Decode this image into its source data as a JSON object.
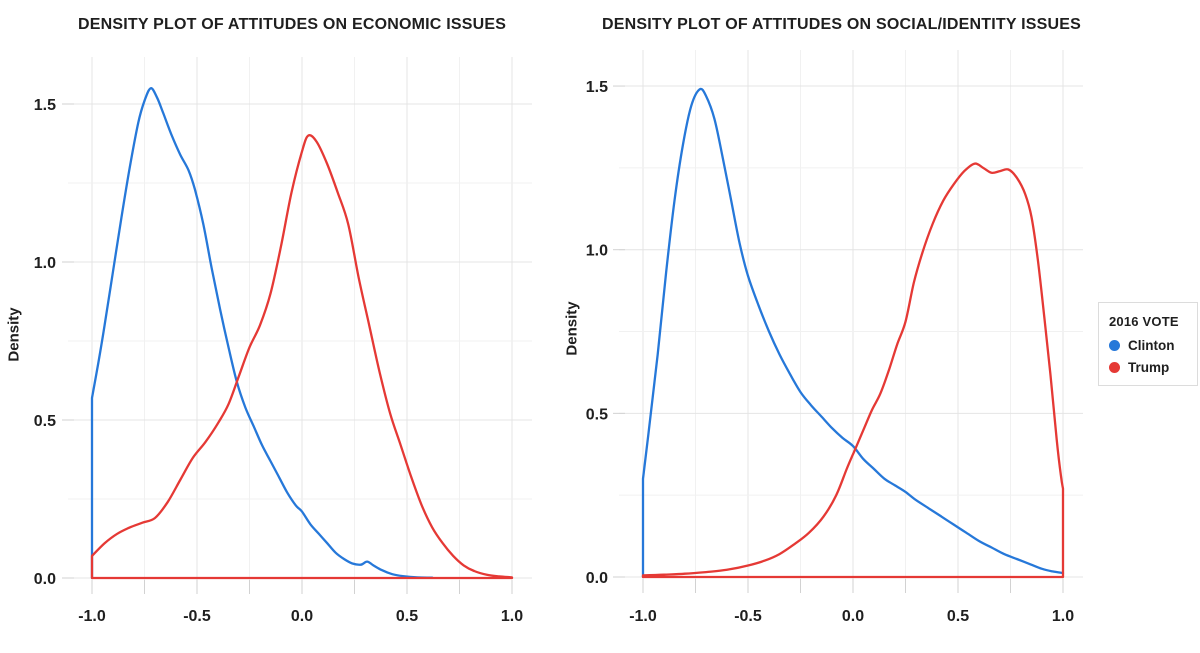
{
  "colors": {
    "clinton": "#2678d9",
    "trump": "#e53935",
    "grid_major": "#e4e4e4",
    "grid_minor": "#f1f1f1",
    "tick": "#d2d2d2",
    "text": "#1f1f1f"
  },
  "legend": {
    "title": "2016 VOTE",
    "entries": [
      {
        "label": "Clinton",
        "color": "#2678d9"
      },
      {
        "label": "Trump",
        "color": "#e53935"
      }
    ]
  },
  "chart_data": [
    {
      "type": "density",
      "title": "DENSITY PLOT OF ATTITUDES ON ECONOMIC ISSUES",
      "xlabel": "",
      "ylabel": "Density",
      "xlim": [
        -1.0,
        1.0
      ],
      "ylim": [
        0.0,
        1.5
      ],
      "x_ticks": [
        -1.0,
        -0.5,
        0.0,
        0.5,
        1.0
      ],
      "x_tick_labels": [
        "-1.0",
        "-0.5",
        "0.0",
        "0.5",
        "1.0"
      ],
      "y_ticks": [
        0.0,
        0.5,
        1.0,
        1.5
      ],
      "y_tick_labels": [
        "0.0",
        "0.5",
        "1.0",
        "1.5"
      ],
      "minor_tick_step": 0.25,
      "grid": true,
      "series": [
        {
          "name": "Clinton",
          "color": "#2678d9",
          "left_edge": true,
          "closed": false,
          "points": [
            [
              -1.0,
              0.57
            ],
            [
              -0.97,
              0.68
            ],
            [
              -0.94,
              0.8
            ],
            [
              -0.9,
              0.97
            ],
            [
              -0.86,
              1.14
            ],
            [
              -0.82,
              1.3
            ],
            [
              -0.78,
              1.44
            ],
            [
              -0.75,
              1.51
            ],
            [
              -0.72,
              1.55
            ],
            [
              -0.69,
              1.52
            ],
            [
              -0.66,
              1.47
            ],
            [
              -0.62,
              1.4
            ],
            [
              -0.58,
              1.34
            ],
            [
              -0.54,
              1.29
            ],
            [
              -0.51,
              1.23
            ],
            [
              -0.47,
              1.12
            ],
            [
              -0.43,
              0.98
            ],
            [
              -0.39,
              0.85
            ],
            [
              -0.35,
              0.73
            ],
            [
              -0.31,
              0.62
            ],
            [
              -0.27,
              0.54
            ],
            [
              -0.23,
              0.48
            ],
            [
              -0.19,
              0.42
            ],
            [
              -0.15,
              0.37
            ],
            [
              -0.11,
              0.32
            ],
            [
              -0.07,
              0.27
            ],
            [
              -0.03,
              0.23
            ],
            [
              0.0,
              0.21
            ],
            [
              0.04,
              0.17
            ],
            [
              0.08,
              0.14
            ],
            [
              0.12,
              0.11
            ],
            [
              0.16,
              0.08
            ],
            [
              0.2,
              0.06
            ],
            [
              0.24,
              0.046
            ],
            [
              0.28,
              0.042
            ],
            [
              0.31,
              0.052
            ],
            [
              0.34,
              0.04
            ],
            [
              0.38,
              0.025
            ],
            [
              0.43,
              0.012
            ],
            [
              0.48,
              0.006
            ],
            [
              0.55,
              0.002
            ],
            [
              0.62,
              0.001
            ]
          ]
        },
        {
          "name": "Trump",
          "color": "#e53935",
          "left_edge": false,
          "closed": true,
          "points": [
            [
              -1.0,
              0.07
            ],
            [
              -0.94,
              0.11
            ],
            [
              -0.88,
              0.14
            ],
            [
              -0.82,
              0.16
            ],
            [
              -0.76,
              0.175
            ],
            [
              -0.7,
              0.19
            ],
            [
              -0.64,
              0.24
            ],
            [
              -0.58,
              0.31
            ],
            [
              -0.52,
              0.38
            ],
            [
              -0.46,
              0.43
            ],
            [
              -0.4,
              0.49
            ],
            [
              -0.35,
              0.55
            ],
            [
              -0.3,
              0.64
            ],
            [
              -0.25,
              0.73
            ],
            [
              -0.2,
              0.8
            ],
            [
              -0.15,
              0.9
            ],
            [
              -0.1,
              1.05
            ],
            [
              -0.05,
              1.22
            ],
            [
              0.0,
              1.35
            ],
            [
              0.03,
              1.4
            ],
            [
              0.07,
              1.38
            ],
            [
              0.12,
              1.31
            ],
            [
              0.17,
              1.22
            ],
            [
              0.22,
              1.12
            ],
            [
              0.27,
              0.95
            ],
            [
              0.32,
              0.8
            ],
            [
              0.37,
              0.65
            ],
            [
              0.42,
              0.52
            ],
            [
              0.47,
              0.42
            ],
            [
              0.52,
              0.32
            ],
            [
              0.57,
              0.23
            ],
            [
              0.62,
              0.16
            ],
            [
              0.67,
              0.11
            ],
            [
              0.72,
              0.07
            ],
            [
              0.77,
              0.04
            ],
            [
              0.82,
              0.022
            ],
            [
              0.88,
              0.01
            ],
            [
              0.94,
              0.005
            ],
            [
              1.0,
              0.002
            ]
          ]
        }
      ]
    },
    {
      "type": "density",
      "title": "DENSITY PLOT OF ATTITUDES ON SOCIAL/IDENTITY ISSUES",
      "xlabel": "",
      "ylabel": "Density",
      "xlim": [
        -1.0,
        1.0
      ],
      "ylim": [
        0.0,
        1.5
      ],
      "x_ticks": [
        -1.0,
        -0.5,
        0.0,
        0.5,
        1.0
      ],
      "x_tick_labels": [
        "-1.0",
        "-0.5",
        "0.0",
        "0.5",
        "1.0"
      ],
      "y_ticks": [
        0.0,
        0.5,
        1.0,
        1.5
      ],
      "y_tick_labels": [
        "0.0",
        "0.5",
        "1.0",
        "1.5"
      ],
      "minor_tick_step": 0.25,
      "grid": true,
      "series": [
        {
          "name": "Clinton",
          "color": "#2678d9",
          "left_edge": true,
          "closed": false,
          "points": [
            [
              -1.0,
              0.3
            ],
            [
              -0.97,
              0.46
            ],
            [
              -0.93,
              0.68
            ],
            [
              -0.89,
              0.93
            ],
            [
              -0.85,
              1.15
            ],
            [
              -0.81,
              1.32
            ],
            [
              -0.77,
              1.44
            ],
            [
              -0.73,
              1.49
            ],
            [
              -0.7,
              1.47
            ],
            [
              -0.66,
              1.4
            ],
            [
              -0.62,
              1.28
            ],
            [
              -0.58,
              1.15
            ],
            [
              -0.54,
              1.02
            ],
            [
              -0.5,
              0.92
            ],
            [
              -0.45,
              0.83
            ],
            [
              -0.4,
              0.75
            ],
            [
              -0.35,
              0.68
            ],
            [
              -0.3,
              0.62
            ],
            [
              -0.25,
              0.565
            ],
            [
              -0.2,
              0.525
            ],
            [
              -0.15,
              0.49
            ],
            [
              -0.1,
              0.455
            ],
            [
              -0.05,
              0.425
            ],
            [
              0.0,
              0.4
            ],
            [
              0.05,
              0.36
            ],
            [
              0.1,
              0.33
            ],
            [
              0.15,
              0.3
            ],
            [
              0.2,
              0.28
            ],
            [
              0.25,
              0.26
            ],
            [
              0.3,
              0.235
            ],
            [
              0.36,
              0.21
            ],
            [
              0.42,
              0.185
            ],
            [
              0.48,
              0.16
            ],
            [
              0.54,
              0.135
            ],
            [
              0.6,
              0.11
            ],
            [
              0.66,
              0.09
            ],
            [
              0.72,
              0.07
            ],
            [
              0.78,
              0.055
            ],
            [
              0.84,
              0.04
            ],
            [
              0.9,
              0.025
            ],
            [
              0.95,
              0.017
            ],
            [
              1.0,
              0.012
            ]
          ]
        },
        {
          "name": "Trump",
          "color": "#e53935",
          "left_edge": false,
          "closed": true,
          "points": [
            [
              -1.0,
              0.005
            ],
            [
              -0.9,
              0.007
            ],
            [
              -0.8,
              0.01
            ],
            [
              -0.7,
              0.015
            ],
            [
              -0.6,
              0.022
            ],
            [
              -0.5,
              0.035
            ],
            [
              -0.42,
              0.05
            ],
            [
              -0.35,
              0.07
            ],
            [
              -0.28,
              0.1
            ],
            [
              -0.21,
              0.135
            ],
            [
              -0.14,
              0.185
            ],
            [
              -0.08,
              0.25
            ],
            [
              -0.03,
              0.33
            ],
            [
              0.01,
              0.39
            ],
            [
              0.05,
              0.45
            ],
            [
              0.09,
              0.51
            ],
            [
              0.13,
              0.56
            ],
            [
              0.17,
              0.63
            ],
            [
              0.21,
              0.71
            ],
            [
              0.25,
              0.78
            ],
            [
              0.29,
              0.9
            ],
            [
              0.33,
              0.99
            ],
            [
              0.38,
              1.08
            ],
            [
              0.43,
              1.15
            ],
            [
              0.48,
              1.2
            ],
            [
              0.53,
              1.24
            ],
            [
              0.58,
              1.263
            ],
            [
              0.62,
              1.25
            ],
            [
              0.66,
              1.235
            ],
            [
              0.7,
              1.24
            ],
            [
              0.74,
              1.245
            ],
            [
              0.78,
              1.22
            ],
            [
              0.82,
              1.17
            ],
            [
              0.85,
              1.1
            ],
            [
              0.88,
              0.97
            ],
            [
              0.91,
              0.8
            ],
            [
              0.94,
              0.62
            ],
            [
              0.97,
              0.42
            ],
            [
              0.99,
              0.31
            ],
            [
              1.0,
              0.27
            ]
          ]
        }
      ]
    }
  ]
}
